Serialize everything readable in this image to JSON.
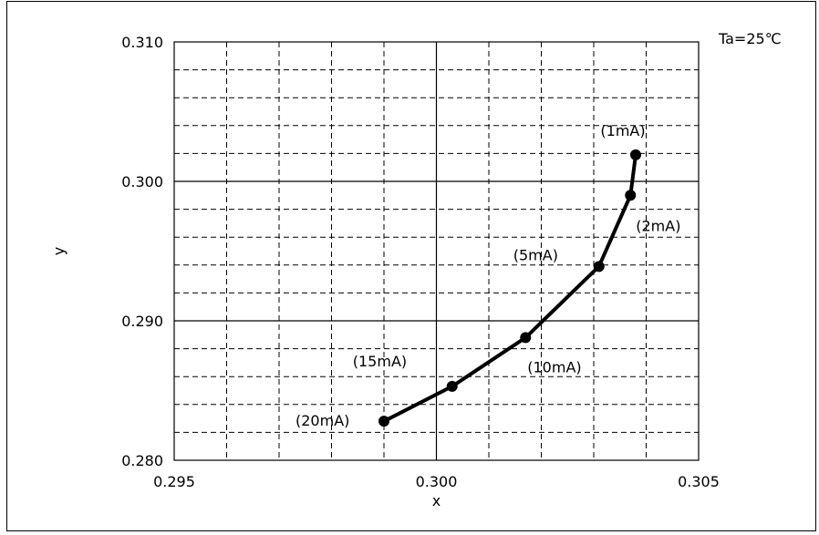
{
  "chart_data": {
    "type": "line",
    "annotation": "Ta=25℃",
    "xlabel": "x",
    "ylabel": "y",
    "xlim": [
      0.295,
      0.305
    ],
    "ylim": [
      0.28,
      0.31
    ],
    "x_major_ticks": [
      0.295,
      0.3,
      0.305
    ],
    "x_tick_labels": [
      "0.295",
      "0.300",
      "0.305"
    ],
    "y_major_ticks": [
      0.28,
      0.29,
      0.3,
      0.31
    ],
    "y_tick_labels": [
      "0.280",
      "0.290",
      "0.300",
      "0.310"
    ],
    "x_minor_step": 0.001,
    "y_minor_step": 0.002,
    "grid": true,
    "series": [
      {
        "points": [
          {
            "x": 0.3038,
            "y": 0.3019,
            "label": "(1mA)"
          },
          {
            "x": 0.3037,
            "y": 0.299,
            "label": "(2mA)"
          },
          {
            "x": 0.3031,
            "y": 0.2939,
            "label": "(5mA)"
          },
          {
            "x": 0.3017,
            "y": 0.2888,
            "label": "(10mA)"
          },
          {
            "x": 0.3003,
            "y": 0.2853,
            "label": "(15mA)"
          },
          {
            "x": 0.299,
            "y": 0.2828,
            "label": "(20mA)"
          }
        ]
      }
    ]
  }
}
